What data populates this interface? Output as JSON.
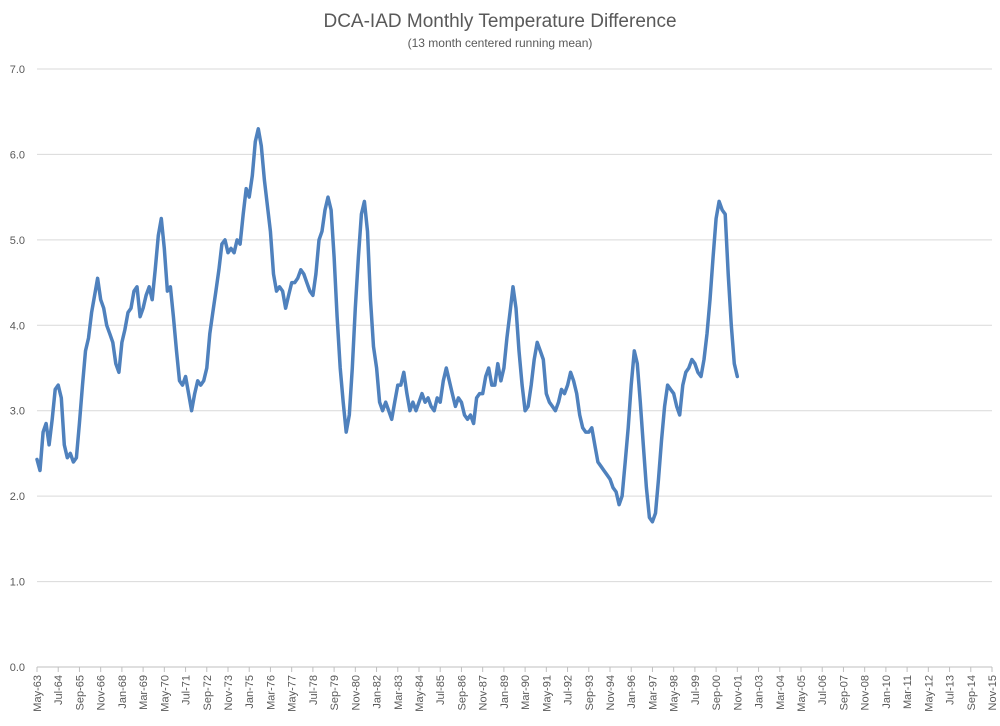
{
  "chart_data": {
    "type": "line",
    "title": "DCA-IAD Monthly Temperature Difference",
    "subtitle": "(13 month centered running mean)",
    "xlabel": "",
    "ylabel": "",
    "ylim": [
      0,
      7
    ],
    "y_ticks": [
      "0.0",
      "1.0",
      "2.0",
      "3.0",
      "4.0",
      "5.0",
      "6.0",
      "7.0"
    ],
    "grid": true,
    "legend": "none",
    "line_color": "#4f81bd",
    "x_start": "May-63",
    "x_end": "Nov-15",
    "x_tick_labels": [
      "May-63",
      "Jul-64",
      "Sep-65",
      "Nov-66",
      "Jan-68",
      "Mar-69",
      "May-70",
      "Jul-71",
      "Sep-72",
      "Nov-73",
      "Jan-75",
      "Mar-76",
      "May-77",
      "Jul-78",
      "Sep-79",
      "Nov-80",
      "Jan-82",
      "Mar-83",
      "May-84",
      "Jul-85",
      "Sep-86",
      "Nov-87",
      "Jan-89",
      "Mar-90",
      "May-91",
      "Jul-92",
      "Sep-93",
      "Nov-94",
      "Jan-96",
      "Mar-97",
      "May-98",
      "Jul-99",
      "Sep-00",
      "Nov-01",
      "Jan-03",
      "Mar-04",
      "May-05",
      "Jul-06",
      "Sep-07",
      "Nov-08",
      "Jan-10",
      "Mar-11",
      "May-12",
      "Jul-13",
      "Sep-14",
      "Nov-15"
    ],
    "series": [
      {
        "points": [
          [
            "May-63",
            2.43
          ],
          [
            "Jul-63",
            2.3
          ],
          [
            "Sep-63",
            2.75
          ],
          [
            "Nov-63",
            2.85
          ],
          [
            "Jan-64",
            2.6
          ],
          [
            "Mar-64",
            2.9
          ],
          [
            "May-64",
            3.25
          ],
          [
            "Jul-64",
            3.3
          ],
          [
            "Sep-64",
            3.15
          ],
          [
            "Nov-64",
            2.6
          ],
          [
            "Jan-65",
            2.45
          ],
          [
            "Mar-65",
            2.5
          ],
          [
            "May-65",
            2.4
          ],
          [
            "Jul-65",
            2.45
          ],
          [
            "Sep-65",
            2.85
          ],
          [
            "Nov-65",
            3.3
          ],
          [
            "Jan-66",
            3.7
          ],
          [
            "Mar-66",
            3.85
          ],
          [
            "May-66",
            4.15
          ],
          [
            "Jul-66",
            4.35
          ],
          [
            "Sep-66",
            4.55
          ],
          [
            "Nov-66",
            4.3
          ],
          [
            "Jan-67",
            4.2
          ],
          [
            "Mar-67",
            4.0
          ],
          [
            "May-67",
            3.9
          ],
          [
            "Jul-67",
            3.8
          ],
          [
            "Sep-67",
            3.55
          ],
          [
            "Nov-67",
            3.45
          ],
          [
            "Jan-68",
            3.8
          ],
          [
            "Mar-68",
            3.95
          ],
          [
            "May-68",
            4.15
          ],
          [
            "Jul-68",
            4.2
          ],
          [
            "Sep-68",
            4.4
          ],
          [
            "Nov-68",
            4.45
          ],
          [
            "Jan-69",
            4.1
          ],
          [
            "Mar-69",
            4.2
          ],
          [
            "May-69",
            4.35
          ],
          [
            "Jul-69",
            4.45
          ],
          [
            "Sep-69",
            4.3
          ],
          [
            "Nov-69",
            4.65
          ],
          [
            "Jan-70",
            5.05
          ],
          [
            "Mar-70",
            5.25
          ],
          [
            "May-70",
            4.9
          ],
          [
            "Jul-70",
            4.4
          ],
          [
            "Sep-70",
            4.45
          ],
          [
            "Nov-70",
            4.1
          ],
          [
            "Jan-71",
            3.7
          ],
          [
            "Mar-71",
            3.35
          ],
          [
            "May-71",
            3.3
          ],
          [
            "Jul-71",
            3.4
          ],
          [
            "Sep-71",
            3.2
          ],
          [
            "Nov-71",
            3.0
          ],
          [
            "Jan-72",
            3.2
          ],
          [
            "Mar-72",
            3.35
          ],
          [
            "May-72",
            3.3
          ],
          [
            "Jul-72",
            3.35
          ],
          [
            "Sep-72",
            3.5
          ],
          [
            "Nov-72",
            3.9
          ],
          [
            "Jan-73",
            4.15
          ],
          [
            "Mar-73",
            4.4
          ],
          [
            "May-73",
            4.65
          ],
          [
            "Jul-73",
            4.95
          ],
          [
            "Sep-73",
            5.0
          ],
          [
            "Nov-73",
            4.85
          ],
          [
            "Jan-74",
            4.9
          ],
          [
            "Mar-74",
            4.85
          ],
          [
            "May-74",
            5.0
          ],
          [
            "Jul-74",
            4.95
          ],
          [
            "Sep-74",
            5.3
          ],
          [
            "Nov-74",
            5.6
          ],
          [
            "Jan-75",
            5.5
          ],
          [
            "Mar-75",
            5.75
          ],
          [
            "May-75",
            6.15
          ],
          [
            "Jul-75",
            6.3
          ],
          [
            "Sep-75",
            6.1
          ],
          [
            "Nov-75",
            5.7
          ],
          [
            "Jan-76",
            5.4
          ],
          [
            "Mar-76",
            5.1
          ],
          [
            "May-76",
            4.6
          ],
          [
            "Jul-76",
            4.4
          ],
          [
            "Sep-76",
            4.45
          ],
          [
            "Nov-76",
            4.4
          ],
          [
            "Jan-77",
            4.2
          ],
          [
            "Mar-77",
            4.35
          ],
          [
            "May-77",
            4.5
          ],
          [
            "Jul-77",
            4.5
          ],
          [
            "Sep-77",
            4.55
          ],
          [
            "Nov-77",
            4.65
          ],
          [
            "Jan-78",
            4.6
          ],
          [
            "Mar-78",
            4.5
          ],
          [
            "May-78",
            4.4
          ],
          [
            "Jul-78",
            4.35
          ],
          [
            "Sep-78",
            4.6
          ],
          [
            "Nov-78",
            5.0
          ],
          [
            "Jan-79",
            5.1
          ],
          [
            "Mar-79",
            5.35
          ],
          [
            "May-79",
            5.5
          ],
          [
            "Jul-79",
            5.35
          ],
          [
            "Sep-79",
            4.8
          ],
          [
            "Nov-79",
            4.1
          ],
          [
            "Jan-80",
            3.5
          ],
          [
            "Mar-80",
            3.1
          ],
          [
            "May-80",
            2.75
          ],
          [
            "Jul-80",
            2.95
          ],
          [
            "Sep-80",
            3.5
          ],
          [
            "Nov-80",
            4.2
          ],
          [
            "Jan-81",
            4.8
          ],
          [
            "Mar-81",
            5.3
          ],
          [
            "May-81",
            5.45
          ],
          [
            "Jul-81",
            5.1
          ],
          [
            "Sep-81",
            4.3
          ],
          [
            "Nov-81",
            3.75
          ],
          [
            "Jan-82",
            3.5
          ],
          [
            "Mar-82",
            3.1
          ],
          [
            "May-82",
            3.0
          ],
          [
            "Jul-82",
            3.1
          ],
          [
            "Sep-82",
            3.0
          ],
          [
            "Nov-82",
            2.9
          ],
          [
            "Jan-83",
            3.1
          ],
          [
            "Mar-83",
            3.3
          ],
          [
            "May-83",
            3.3
          ],
          [
            "Jul-83",
            3.45
          ],
          [
            "Sep-83",
            3.2
          ],
          [
            "Nov-83",
            3.0
          ],
          [
            "Jan-84",
            3.1
          ],
          [
            "Mar-84",
            3.0
          ],
          [
            "May-84",
            3.1
          ],
          [
            "Jul-84",
            3.2
          ],
          [
            "Sep-84",
            3.1
          ],
          [
            "Nov-84",
            3.15
          ],
          [
            "Jan-85",
            3.05
          ],
          [
            "Mar-85",
            3.0
          ],
          [
            "May-85",
            3.15
          ],
          [
            "Jul-85",
            3.1
          ],
          [
            "Sep-85",
            3.35
          ],
          [
            "Nov-85",
            3.5
          ],
          [
            "Jan-86",
            3.35
          ],
          [
            "Mar-86",
            3.2
          ],
          [
            "May-86",
            3.05
          ],
          [
            "Jul-86",
            3.15
          ],
          [
            "Sep-86",
            3.1
          ],
          [
            "Nov-86",
            2.95
          ],
          [
            "Jan-87",
            2.9
          ],
          [
            "Mar-87",
            2.95
          ],
          [
            "May-87",
            2.85
          ],
          [
            "Jul-87",
            3.15
          ],
          [
            "Sep-87",
            3.2
          ],
          [
            "Nov-87",
            3.2
          ],
          [
            "Jan-88",
            3.4
          ],
          [
            "Mar-88",
            3.5
          ],
          [
            "May-88",
            3.3
          ],
          [
            "Jul-88",
            3.3
          ],
          [
            "Sep-88",
            3.55
          ],
          [
            "Nov-88",
            3.35
          ],
          [
            "Jan-89",
            3.5
          ],
          [
            "Mar-89",
            3.85
          ],
          [
            "May-89",
            4.15
          ],
          [
            "Jul-89",
            4.45
          ],
          [
            "Sep-89",
            4.2
          ],
          [
            "Nov-89",
            3.7
          ],
          [
            "Jan-90",
            3.3
          ],
          [
            "Mar-90",
            3.0
          ],
          [
            "May-90",
            3.05
          ],
          [
            "Jul-90",
            3.3
          ],
          [
            "Sep-90",
            3.6
          ],
          [
            "Nov-90",
            3.8
          ],
          [
            "Jan-91",
            3.7
          ],
          [
            "Mar-91",
            3.6
          ],
          [
            "May-91",
            3.2
          ],
          [
            "Jul-91",
            3.1
          ],
          [
            "Sep-91",
            3.05
          ],
          [
            "Nov-91",
            3.0
          ],
          [
            "Jan-92",
            3.1
          ],
          [
            "Mar-92",
            3.25
          ],
          [
            "May-92",
            3.2
          ],
          [
            "Jul-92",
            3.3
          ],
          [
            "Sep-92",
            3.45
          ],
          [
            "Nov-92",
            3.35
          ],
          [
            "Jan-93",
            3.2
          ],
          [
            "Mar-93",
            2.95
          ],
          [
            "May-93",
            2.8
          ],
          [
            "Jul-93",
            2.75
          ],
          [
            "Sep-93",
            2.75
          ],
          [
            "Nov-93",
            2.8
          ],
          [
            "Jan-94",
            2.6
          ],
          [
            "Mar-94",
            2.4
          ],
          [
            "May-94",
            2.35
          ],
          [
            "Jul-94",
            2.3
          ],
          [
            "Sep-94",
            2.25
          ],
          [
            "Nov-94",
            2.2
          ],
          [
            "Jan-95",
            2.1
          ],
          [
            "Mar-95",
            2.05
          ],
          [
            "May-95",
            1.9
          ],
          [
            "Jul-95",
            2.0
          ],
          [
            "Sep-95",
            2.4
          ],
          [
            "Nov-95",
            2.8
          ],
          [
            "Jan-96",
            3.3
          ],
          [
            "Mar-96",
            3.7
          ],
          [
            "May-96",
            3.55
          ],
          [
            "Jul-96",
            3.1
          ],
          [
            "Sep-96",
            2.6
          ],
          [
            "Nov-96",
            2.1
          ],
          [
            "Jan-97",
            1.75
          ],
          [
            "Mar-97",
            1.7
          ],
          [
            "May-97",
            1.8
          ],
          [
            "Jul-97",
            2.2
          ],
          [
            "Sep-97",
            2.65
          ],
          [
            "Nov-97",
            3.05
          ],
          [
            "Jan-98",
            3.3
          ],
          [
            "Mar-98",
            3.25
          ],
          [
            "May-98",
            3.2
          ],
          [
            "Jul-98",
            3.05
          ],
          [
            "Sep-98",
            2.95
          ],
          [
            "Nov-98",
            3.3
          ],
          [
            "Jan-99",
            3.45
          ],
          [
            "Mar-99",
            3.5
          ],
          [
            "May-99",
            3.6
          ],
          [
            "Jul-99",
            3.55
          ],
          [
            "Sep-99",
            3.45
          ],
          [
            "Nov-99",
            3.4
          ],
          [
            "Jan-00",
            3.6
          ],
          [
            "Mar-00",
            3.9
          ],
          [
            "May-00",
            4.3
          ],
          [
            "Jul-00",
            4.8
          ],
          [
            "Sep-00",
            5.25
          ],
          [
            "Nov-00",
            5.45
          ],
          [
            "Jan-01",
            5.35
          ],
          [
            "Mar-01",
            5.3
          ],
          [
            "May-01",
            4.6
          ],
          [
            "Jul-01",
            4.0
          ],
          [
            "Sep-01",
            3.55
          ],
          [
            "Nov-01",
            3.4
          ]
        ]
      }
    ]
  }
}
